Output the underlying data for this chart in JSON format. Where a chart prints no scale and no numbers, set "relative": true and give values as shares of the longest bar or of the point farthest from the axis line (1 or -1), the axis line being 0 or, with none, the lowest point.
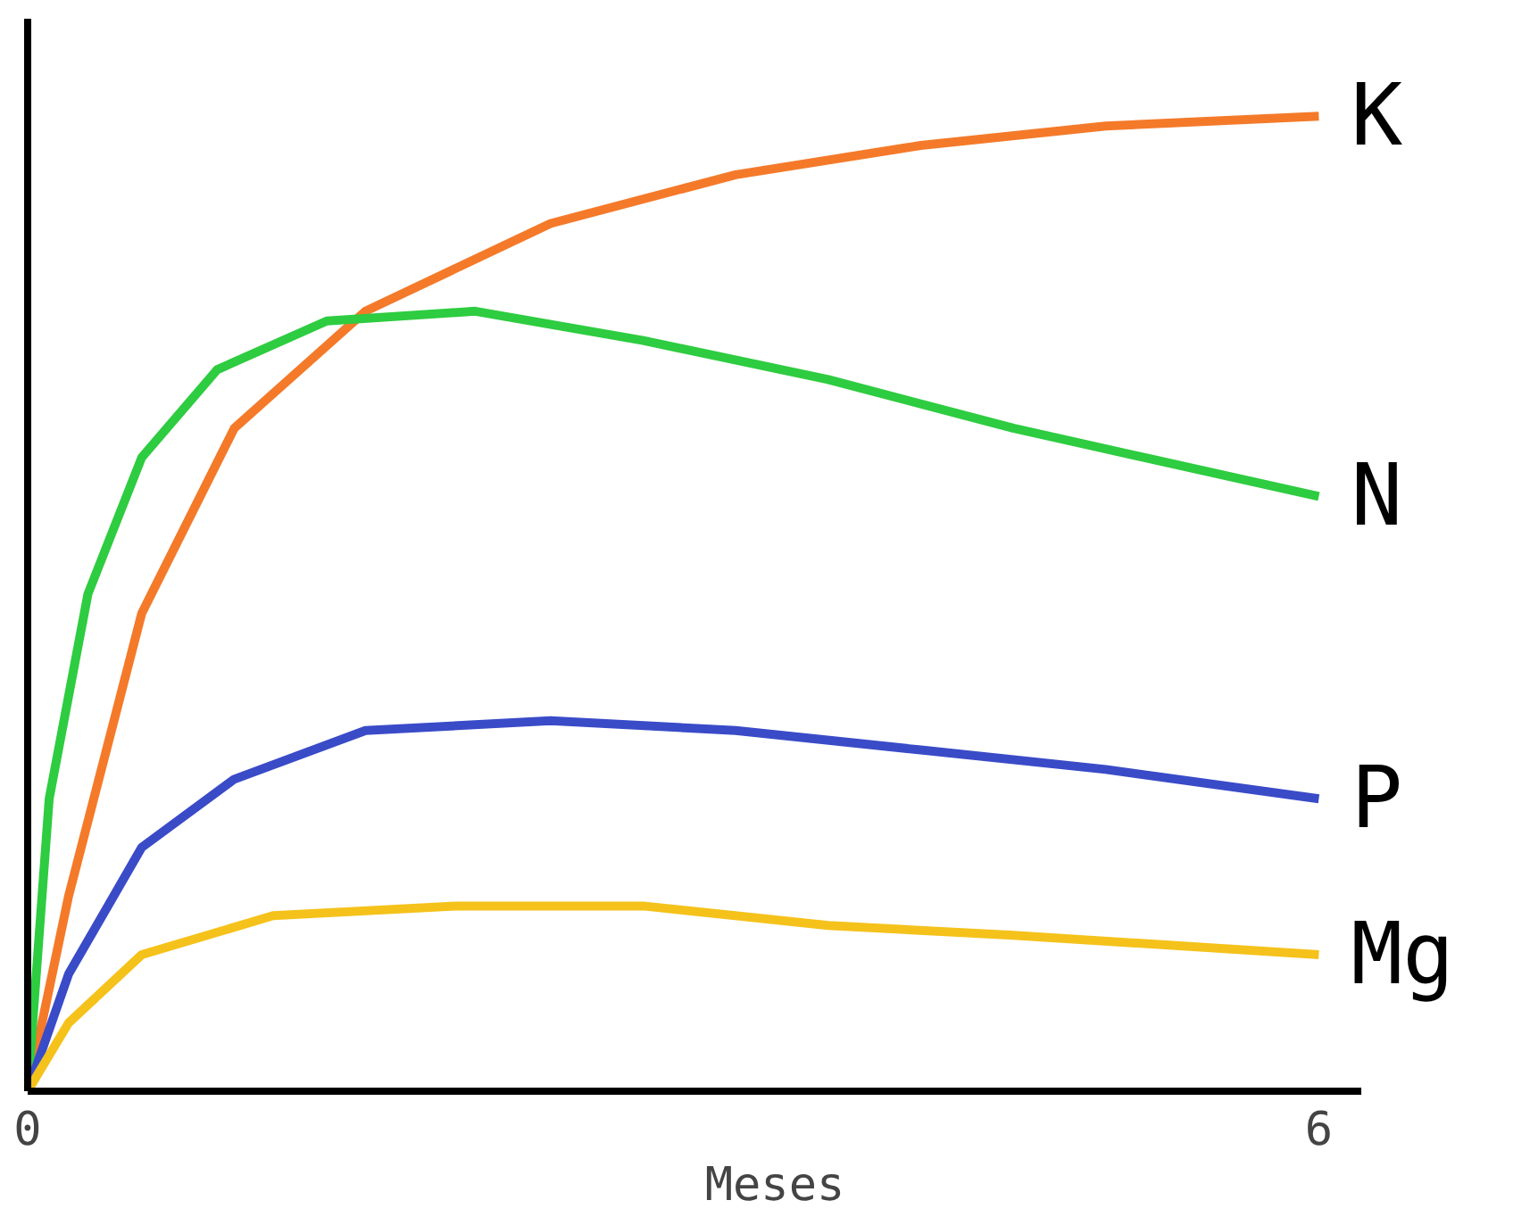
{
  "chart_data": {
    "type": "line",
    "xlabel": "Meses",
    "relative": true,
    "xlim": [
      0,
      6.2
    ],
    "xticks": [
      0,
      6
    ],
    "grid": false,
    "marker": "none",
    "line_style": "solid",
    "series": [
      {
        "name": "K",
        "color": "#f47a2a",
        "x": [
          0,
          0.19,
          0.53,
          0.96,
          1.57,
          2.43,
          3.29,
          4.15,
          5.01,
          6
        ],
        "values": [
          0,
          0.2,
          0.49,
          0.68,
          0.8,
          0.89,
          0.94,
          0.97,
          0.99,
          1
        ]
      },
      {
        "name": "N",
        "color": "#2ecc40",
        "x": [
          0,
          0.1,
          0.28,
          0.53,
          0.88,
          1.39,
          2.08,
          2.86,
          3.72,
          4.58,
          6
        ],
        "values": [
          0,
          0.3,
          0.51,
          0.65,
          0.74,
          0.79,
          0.8,
          0.77,
          0.73,
          0.68,
          0.61
        ]
      },
      {
        "name": "P",
        "color": "#3a4bc8",
        "x": [
          0,
          0.19,
          0.53,
          0.96,
          1.57,
          2.43,
          3.29,
          4.15,
          5.01,
          6
        ],
        "values": [
          0,
          0.12,
          0.25,
          0.32,
          0.37,
          0.38,
          0.37,
          0.35,
          0.33,
          0.3
        ]
      },
      {
        "name": "Mg",
        "color": "#f5c21b",
        "x": [
          0,
          0.19,
          0.53,
          1.14,
          2.0,
          2.86,
          3.72,
          4.58,
          6
        ],
        "values": [
          0,
          0.07,
          0.14,
          0.18,
          0.19,
          0.19,
          0.17,
          0.16,
          0.14
        ]
      }
    ]
  }
}
